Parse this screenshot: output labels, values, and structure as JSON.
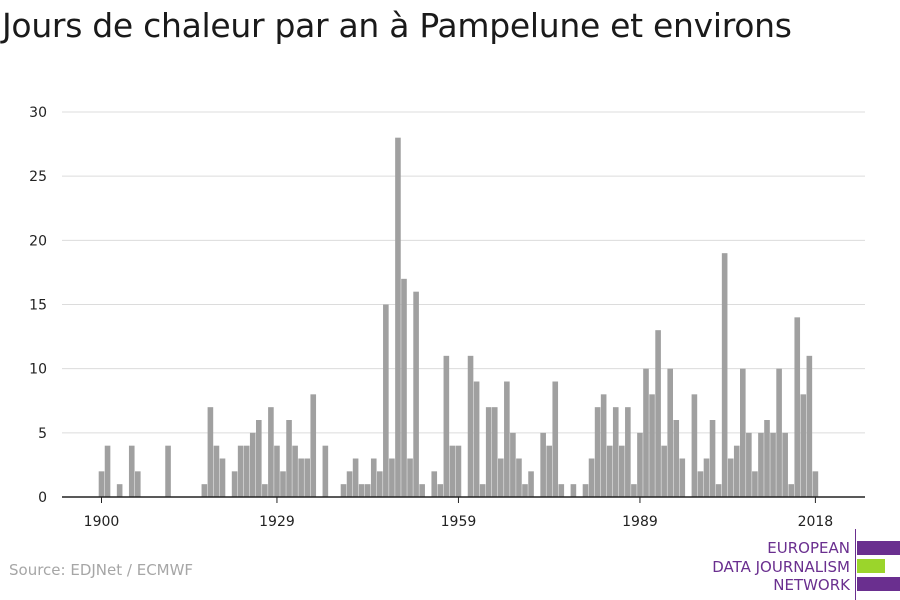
{
  "title": "Jours de chaleur par an à Pampelune et environs",
  "source": "Source: EDJNet / ECMWF",
  "logo": {
    "line1": "EUROPEAN",
    "line2": "DATA JOURNALISM",
    "line3": "NETWORK",
    "colors": [
      "#6a2f8f",
      "#9bd52b",
      "#6a2f8f"
    ]
  },
  "chart_data": {
    "type": "bar",
    "title": "Jours de chaleur par an à Pampelune et environs",
    "xlabel": "",
    "ylabel": "",
    "x_ticks": [
      1900,
      1929,
      1959,
      1989,
      2018
    ],
    "y_ticks": [
      0,
      5,
      10,
      15,
      20,
      25,
      30
    ],
    "ylim": [
      0,
      30
    ],
    "grid": true,
    "bar_color": "#a0a0a0",
    "start_year": 1900,
    "values": [
      2,
      4,
      0,
      1,
      0,
      4,
      2,
      0,
      0,
      0,
      0,
      4,
      0,
      0,
      0,
      0,
      0,
      1,
      7,
      4,
      3,
      0,
      2,
      4,
      4,
      5,
      6,
      1,
      7,
      4,
      2,
      6,
      4,
      3,
      3,
      8,
      0,
      4,
      0,
      0,
      1,
      2,
      3,
      1,
      1,
      3,
      2,
      15,
      3,
      28,
      17,
      3,
      16,
      1,
      0,
      2,
      1,
      11,
      4,
      4,
      0,
      11,
      9,
      1,
      7,
      7,
      3,
      9,
      5,
      3,
      1,
      2,
      0,
      5,
      4,
      9,
      1,
      0,
      1,
      0,
      1,
      3,
      7,
      8,
      4,
      7,
      4,
      7,
      1,
      5,
      10,
      8,
      13,
      4,
      10,
      6,
      3,
      0,
      8,
      2,
      3,
      6,
      1,
      19,
      3,
      4,
      10,
      5,
      2,
      5,
      6,
      5,
      10,
      5,
      1,
      14,
      8,
      11,
      2
    ]
  }
}
